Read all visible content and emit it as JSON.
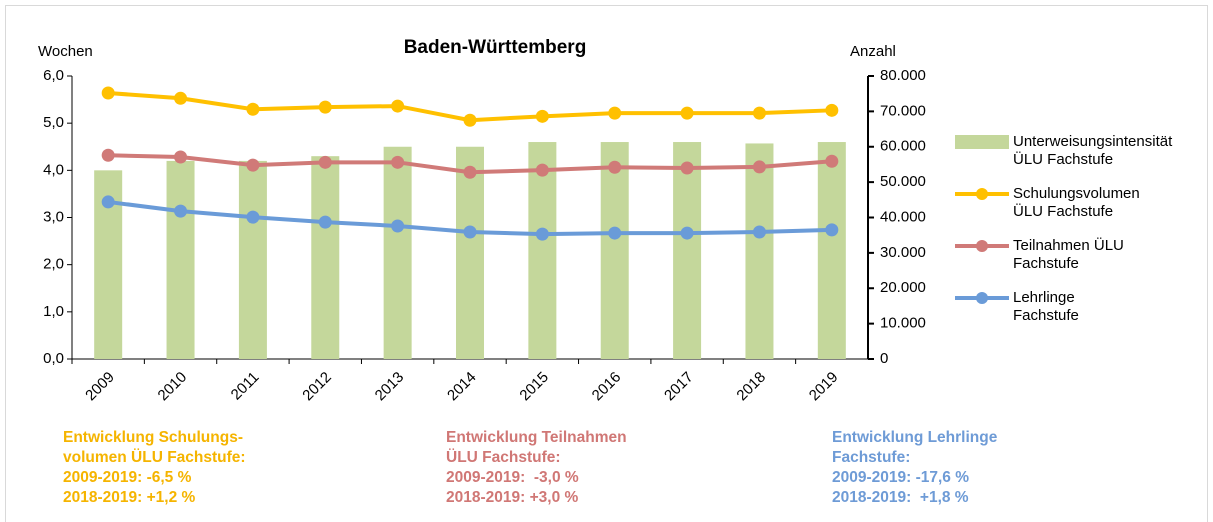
{
  "chart_data": {
    "type": "bar-line",
    "title": "Baden-Württemberg",
    "y_label": "Wochen",
    "y2_label": "Anzahl",
    "categories": [
      "2009",
      "2010",
      "2011",
      "2012",
      "2013",
      "2014",
      "2015",
      "2016",
      "2017",
      "2018",
      "2019"
    ],
    "series": [
      {
        "name": "Unterweisungsintensität ÜLU Fachstufe",
        "type": "bar",
        "color": "#c4d79b",
        "axis": "y",
        "values": [
          4.0,
          4.2,
          4.2,
          4.3,
          4.5,
          4.5,
          4.6,
          4.6,
          4.6,
          4.57,
          4.6
        ]
      },
      {
        "name": "Schulungsvolumen ÜLU Fachstufe",
        "type": "line",
        "color": "#ffc000",
        "axis": "y2",
        "values": [
          75200,
          73700,
          70600,
          71200,
          71500,
          67500,
          68600,
          69500,
          69500,
          69500,
          70300
        ]
      },
      {
        "name": "Teilnahmen ÜLU Fachstufe",
        "type": "line",
        "color": "#d07a78",
        "axis": "y2",
        "values": [
          57600,
          57100,
          54800,
          55600,
          55600,
          52800,
          53400,
          54200,
          54000,
          54300,
          55900
        ]
      },
      {
        "name": "Lehrlinge Fachstufe",
        "type": "line",
        "color": "#6a9bd8",
        "axis": "y2",
        "values": [
          44400,
          41800,
          40100,
          38700,
          37600,
          35900,
          35300,
          35600,
          35600,
          35900,
          36500
        ]
      }
    ],
    "ylim": [
      0,
      6
    ],
    "yticks": [
      {
        "value": 0,
        "label": "0,0"
      },
      {
        "value": 1,
        "label": "1,0"
      },
      {
        "value": 2,
        "label": "2,0"
      },
      {
        "value": 3,
        "label": "3,0"
      },
      {
        "value": 4,
        "label": "4,0"
      },
      {
        "value": 5,
        "label": "5,0"
      },
      {
        "value": 6,
        "label": "6,0"
      }
    ],
    "y2lim": [
      0,
      80000
    ],
    "y2ticks": [
      0,
      {
        "value": 10000,
        "label": "10.000"
      },
      {
        "value": 20000,
        "label": "20.000"
      },
      {
        "value": 30000,
        "label": "30.000"
      },
      {
        "value": 40000,
        "label": "40.000"
      },
      {
        "value": 50000,
        "label": "50.000"
      },
      {
        "value": 60000,
        "label": "60.000"
      },
      {
        "value": 70000,
        "label": "70.000"
      },
      {
        "value": 80000,
        "label": "80.000"
      }
    ],
    "legend": "right",
    "annotations": [
      {
        "color": "#f5b400",
        "lines": [
          "Entwicklung Schulungs-",
          "volumen ÜLU Fachstufe:",
          "2009-2019: -6,5 %",
          "2018-2019: +1,2 %"
        ]
      },
      {
        "color": "#d07775",
        "lines": [
          "Entwicklung Teilnahmen",
          "ÜLU Fachstufe:",
          "2009-2019:  -3,0 %",
          "2018-2019: +3,0 %"
        ]
      },
      {
        "color": "#6e9bd6",
        "lines": [
          "Entwicklung Lehrlinge",
          "Fachstufe:",
          "2009-2019: -17,6 %",
          "2018-2019:  +1,8 %"
        ]
      }
    ]
  }
}
